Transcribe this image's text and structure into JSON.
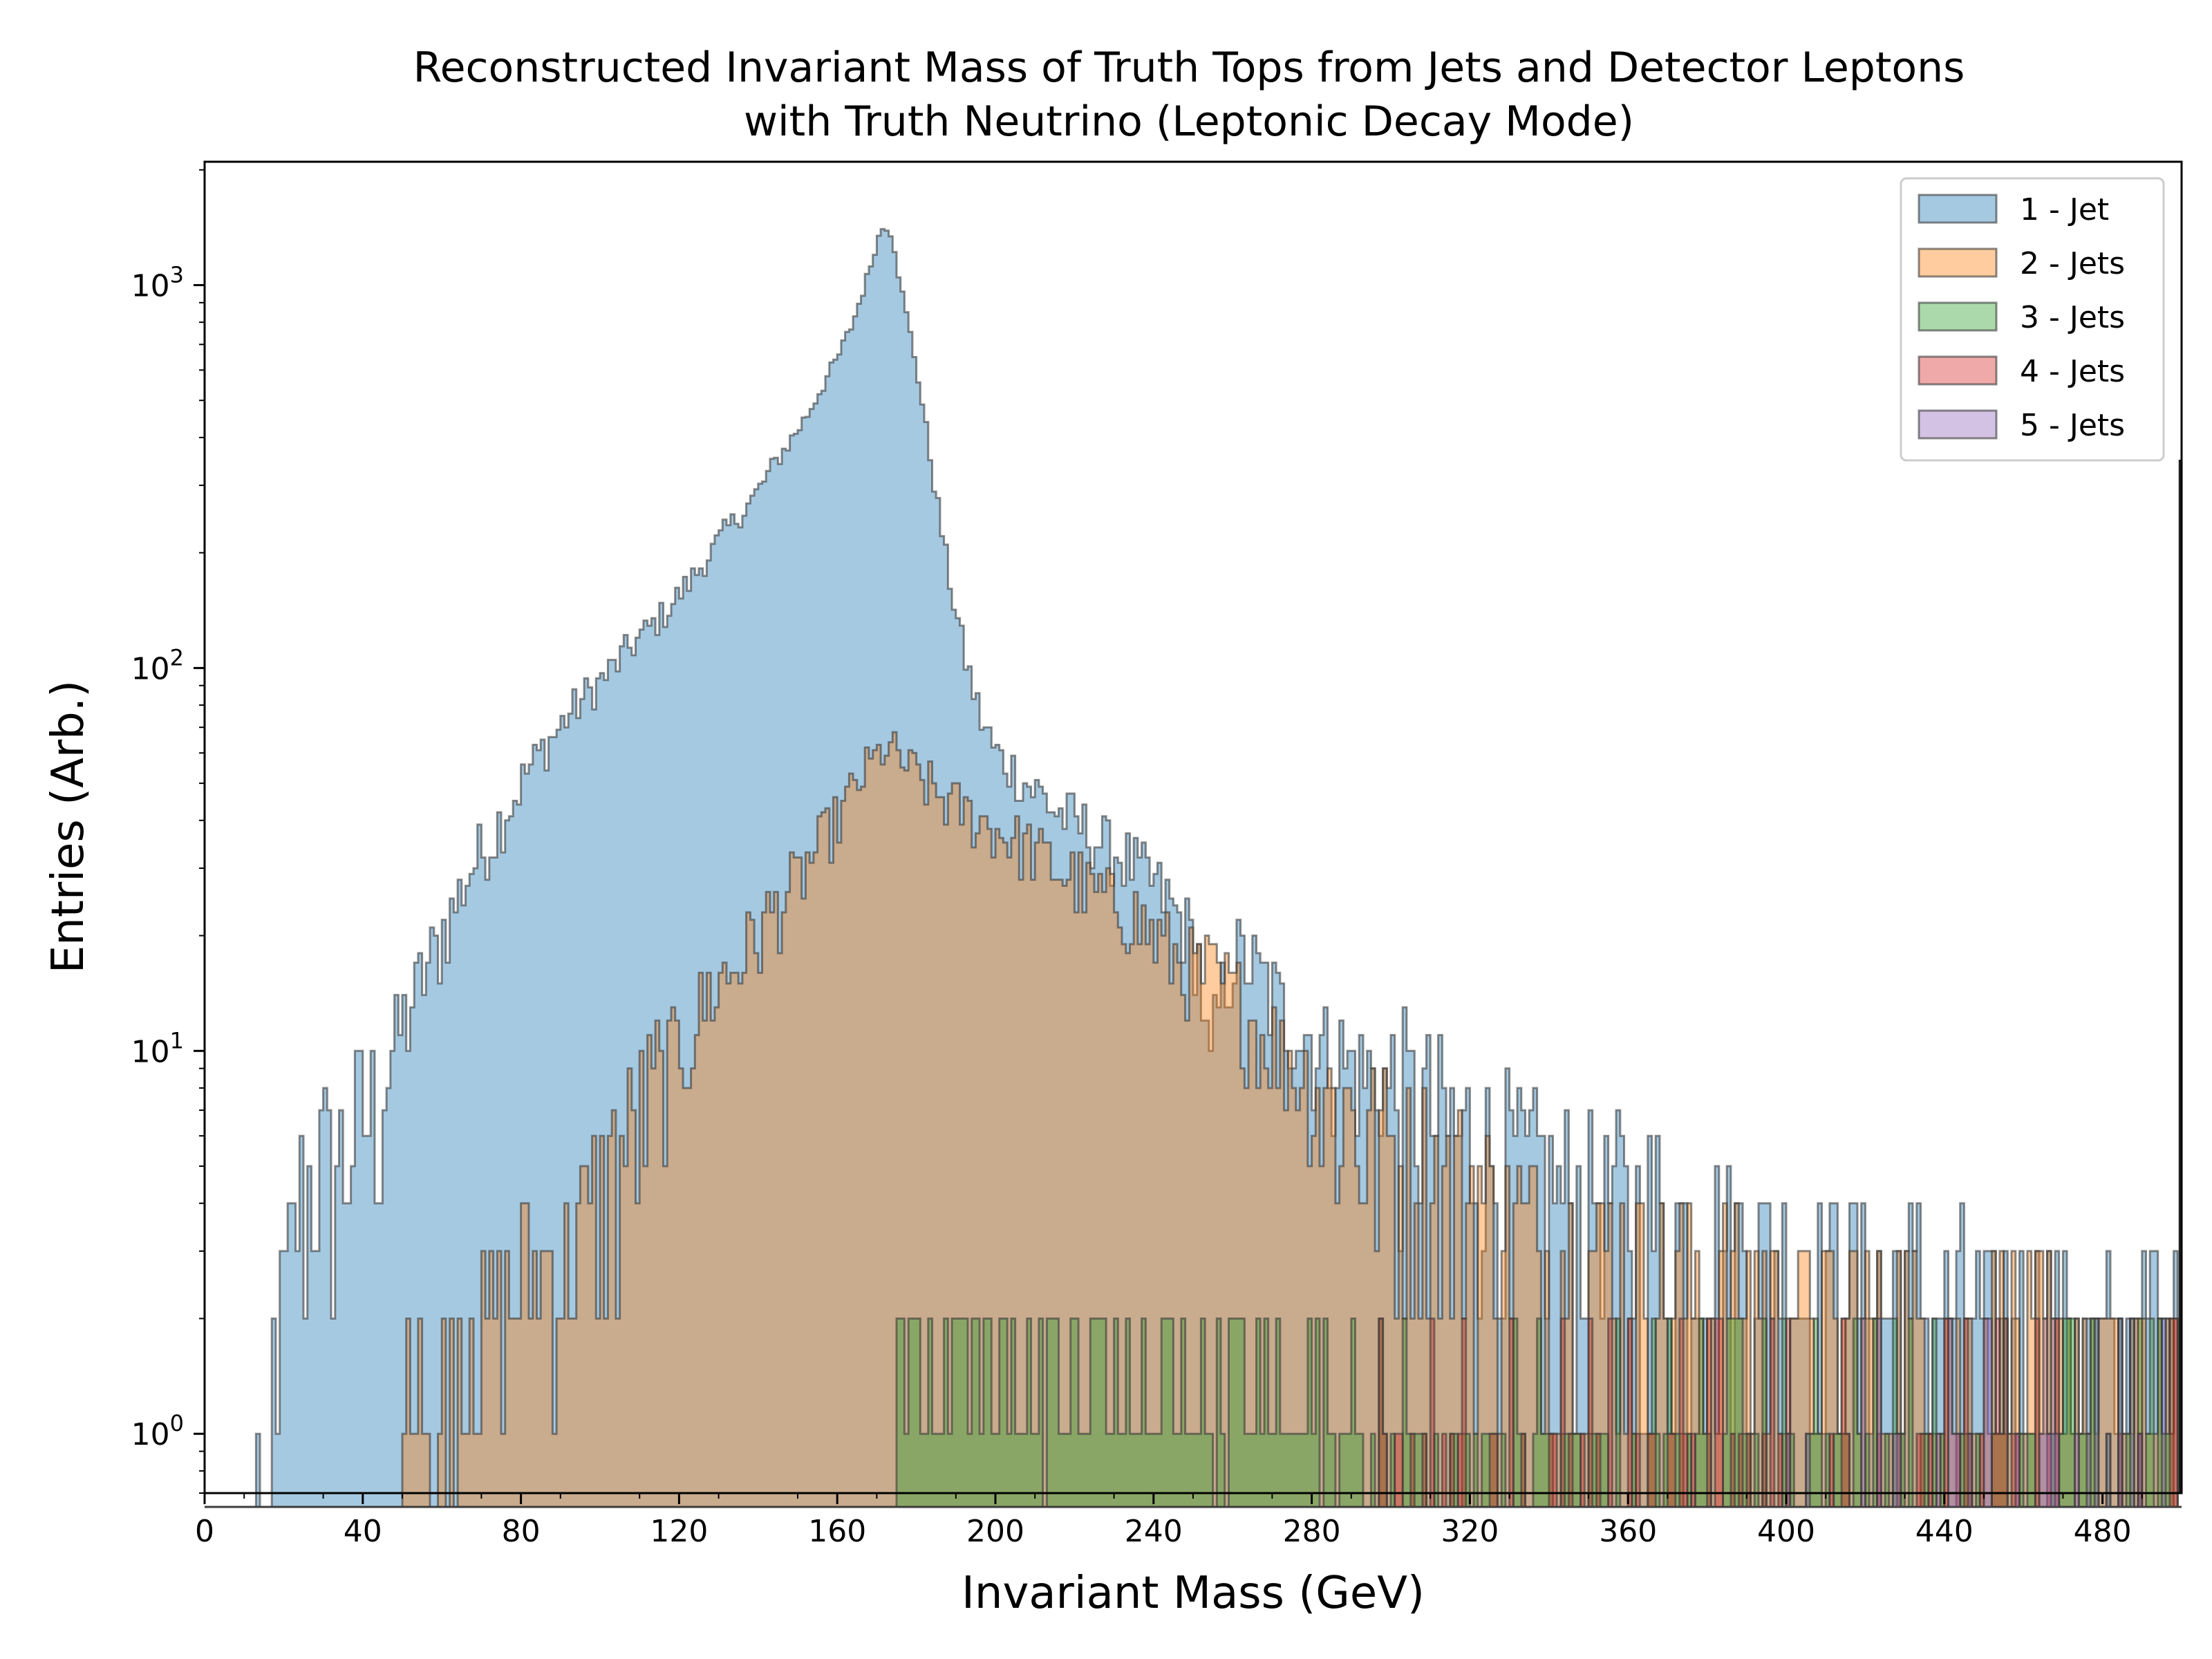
{
  "chart_data": {
    "type": "histogram-step",
    "title": "Reconstructed Invariant Mass of Truth Tops from Jets and Detector Leptons",
    "subtitle": "with Truth Neutrino (Leptonic Decay Mode)",
    "xlabel": "Invariant Mass (GeV)",
    "ylabel": "Entries (Arb.)",
    "xlim": [
      0,
      500
    ],
    "ylim": [
      0.7,
      2100
    ],
    "yscale": "log",
    "x_ticks": [
      0,
      40,
      80,
      120,
      160,
      200,
      240,
      280,
      320,
      360,
      400,
      440,
      480
    ],
    "y_ticks": [
      {
        "value": 1,
        "base": "10",
        "exp": "0"
      },
      {
        "value": 10,
        "base": "10",
        "exp": "1"
      },
      {
        "value": 100,
        "base": "10",
        "exp": "2"
      },
      {
        "value": 1000,
        "base": "10",
        "exp": "3"
      }
    ],
    "legend_position": "top-right",
    "grid": false,
    "series": [
      {
        "name": "1 - Jet",
        "color": "#1f77b4",
        "envelope": [
          [
            12,
            1
          ],
          [
            16,
            1
          ],
          [
            20,
            2
          ],
          [
            24,
            4
          ],
          [
            28,
            5
          ],
          [
            32,
            5
          ],
          [
            36,
            5
          ],
          [
            40,
            7
          ],
          [
            44,
            7
          ],
          [
            48,
            10
          ],
          [
            52,
            13
          ],
          [
            56,
            16
          ],
          [
            60,
            20
          ],
          [
            64,
            25
          ],
          [
            68,
            31
          ],
          [
            72,
            35
          ],
          [
            76,
            42
          ],
          [
            80,
            50
          ],
          [
            84,
            58
          ],
          [
            88,
            66
          ],
          [
            92,
            75
          ],
          [
            96,
            84
          ],
          [
            100,
            92
          ],
          [
            104,
            102
          ],
          [
            108,
            115
          ],
          [
            112,
            125
          ],
          [
            116,
            138
          ],
          [
            120,
            155
          ],
          [
            124,
            175
          ],
          [
            128,
            200
          ],
          [
            132,
            230
          ],
          [
            136,
            255
          ],
          [
            140,
            290
          ],
          [
            144,
            340
          ],
          [
            148,
            390
          ],
          [
            152,
            450
          ],
          [
            156,
            540
          ],
          [
            160,
            640
          ],
          [
            164,
            800
          ],
          [
            168,
            1080
          ],
          [
            170,
            1300
          ],
          [
            172,
            1450
          ],
          [
            174,
            1350
          ],
          [
            176,
            1000
          ],
          [
            180,
            620
          ],
          [
            184,
            330
          ],
          [
            188,
            180
          ],
          [
            192,
            110
          ],
          [
            196,
            76
          ],
          [
            200,
            60
          ],
          [
            204,
            55
          ],
          [
            208,
            50
          ],
          [
            212,
            46
          ],
          [
            216,
            42
          ],
          [
            220,
            40
          ],
          [
            224,
            37
          ],
          [
            228,
            34
          ],
          [
            232,
            32
          ],
          [
            236,
            30
          ],
          [
            240,
            27
          ],
          [
            244,
            24
          ],
          [
            248,
            21
          ],
          [
            252,
            17
          ],
          [
            254,
            8
          ],
          [
            256,
            12
          ],
          [
            260,
            18
          ],
          [
            264,
            17
          ],
          [
            268,
            15
          ],
          [
            272,
            13
          ],
          [
            276,
            12
          ],
          [
            280,
            11
          ],
          [
            284,
            10
          ],
          [
            288,
            9.5
          ],
          [
            292,
            9
          ],
          [
            296,
            8.5
          ],
          [
            300,
            8
          ],
          [
            308,
            7
          ],
          [
            316,
            6
          ],
          [
            324,
            5.5
          ],
          [
            332,
            5
          ],
          [
            340,
            4.5
          ],
          [
            348,
            4.3
          ],
          [
            356,
            4
          ],
          [
            364,
            3.8
          ],
          [
            372,
            3.5
          ],
          [
            380,
            3.3
          ],
          [
            388,
            3.1
          ],
          [
            396,
            3
          ],
          [
            404,
            2.8
          ],
          [
            412,
            2.6
          ],
          [
            420,
            2.5
          ],
          [
            428,
            2.4
          ],
          [
            436,
            2.3
          ],
          [
            444,
            2.2
          ],
          [
            452,
            2.1
          ],
          [
            460,
            2
          ],
          [
            468,
            2
          ],
          [
            476,
            1.9
          ],
          [
            484,
            1.8
          ],
          [
            492,
            1.8
          ],
          [
            499,
            1.7
          ]
        ]
      },
      {
        "name": "2 - Jets",
        "color": "#ff7f0e",
        "envelope": [
          [
            50,
            1
          ],
          [
            56,
            1
          ],
          [
            60,
            1
          ],
          [
            66,
            1
          ],
          [
            70,
            1.5
          ],
          [
            76,
            2
          ],
          [
            80,
            2.5
          ],
          [
            86,
            3
          ],
          [
            92,
            3
          ],
          [
            96,
            3.5
          ],
          [
            100,
            4
          ],
          [
            104,
            5
          ],
          [
            108,
            6
          ],
          [
            112,
            7
          ],
          [
            116,
            8.5
          ],
          [
            120,
            10
          ],
          [
            124,
            12
          ],
          [
            128,
            14
          ],
          [
            132,
            16
          ],
          [
            136,
            18
          ],
          [
            140,
            20
          ],
          [
            144,
            23
          ],
          [
            148,
            26
          ],
          [
            152,
            30
          ],
          [
            156,
            35
          ],
          [
            160,
            40
          ],
          [
            164,
            48
          ],
          [
            168,
            55
          ],
          [
            172,
            62
          ],
          [
            176,
            58
          ],
          [
            180,
            52
          ],
          [
            184,
            48
          ],
          [
            188,
            45
          ],
          [
            192,
            42
          ],
          [
            196,
            40
          ],
          [
            200,
            38
          ],
          [
            204,
            36
          ],
          [
            208,
            34
          ],
          [
            212,
            32
          ],
          [
            216,
            30
          ],
          [
            220,
            28
          ],
          [
            224,
            26
          ],
          [
            228,
            25
          ],
          [
            232,
            24
          ],
          [
            236,
            22
          ],
          [
            240,
            20
          ],
          [
            244,
            18
          ],
          [
            248,
            17
          ],
          [
            252,
            16
          ],
          [
            256,
            15
          ],
          [
            260,
            14
          ],
          [
            264,
            12
          ],
          [
            268,
            11
          ],
          [
            272,
            10
          ],
          [
            276,
            9
          ],
          [
            280,
            8.5
          ],
          [
            284,
            7.5
          ],
          [
            288,
            7
          ],
          [
            292,
            6.5
          ],
          [
            296,
            6
          ],
          [
            300,
            5.5
          ],
          [
            308,
            5
          ],
          [
            316,
            4.5
          ],
          [
            324,
            4
          ],
          [
            332,
            3.5
          ],
          [
            340,
            3.2
          ],
          [
            348,
            3
          ],
          [
            356,
            2.8
          ],
          [
            364,
            2.6
          ],
          [
            372,
            2.5
          ],
          [
            380,
            2.4
          ],
          [
            388,
            2.3
          ],
          [
            396,
            2.2
          ],
          [
            404,
            2.1
          ],
          [
            412,
            2
          ],
          [
            420,
            2
          ],
          [
            432,
            1.9
          ],
          [
            444,
            1.8
          ],
          [
            456,
            1.7
          ],
          [
            468,
            1.6
          ],
          [
            480,
            1.5
          ],
          [
            490,
            1.5
          ],
          [
            499,
            1.4
          ]
        ]
      },
      {
        "name": "3 - Jets",
        "color": "#2ca02c",
        "envelope": [
          [
            172,
            1
          ],
          [
            176,
            1.4
          ],
          [
            180,
            1.5
          ],
          [
            190,
            1.5
          ],
          [
            200,
            1.5
          ],
          [
            210,
            1.5
          ],
          [
            220,
            1.4
          ],
          [
            230,
            1.4
          ],
          [
            240,
            1.3
          ],
          [
            250,
            1.3
          ],
          [
            260,
            1.3
          ],
          [
            270,
            1.2
          ],
          [
            280,
            1.2
          ],
          [
            290,
            1.2
          ],
          [
            300,
            1.1
          ],
          [
            320,
            1.1
          ],
          [
            340,
            1.1
          ],
          [
            360,
            1
          ],
          [
            380,
            1
          ],
          [
            400,
            1
          ],
          [
            420,
            1
          ],
          [
            440,
            1
          ],
          [
            460,
            1
          ],
          [
            480,
            1
          ],
          [
            499,
            1
          ]
        ]
      },
      {
        "name": "4 - Jets",
        "color": "#d62728",
        "envelope": [
          [
            290,
            0.5
          ],
          [
            330,
            0.6
          ],
          [
            360,
            0.7
          ],
          [
            400,
            0.7
          ],
          [
            440,
            0.7
          ],
          [
            480,
            0.6
          ],
          [
            499,
            0.6
          ]
        ]
      },
      {
        "name": "5 - Jets",
        "color": "#9467bd",
        "envelope": [
          [
            400,
            0.4
          ],
          [
            450,
            0.5
          ],
          [
            499,
            0.5
          ]
        ]
      }
    ]
  }
}
